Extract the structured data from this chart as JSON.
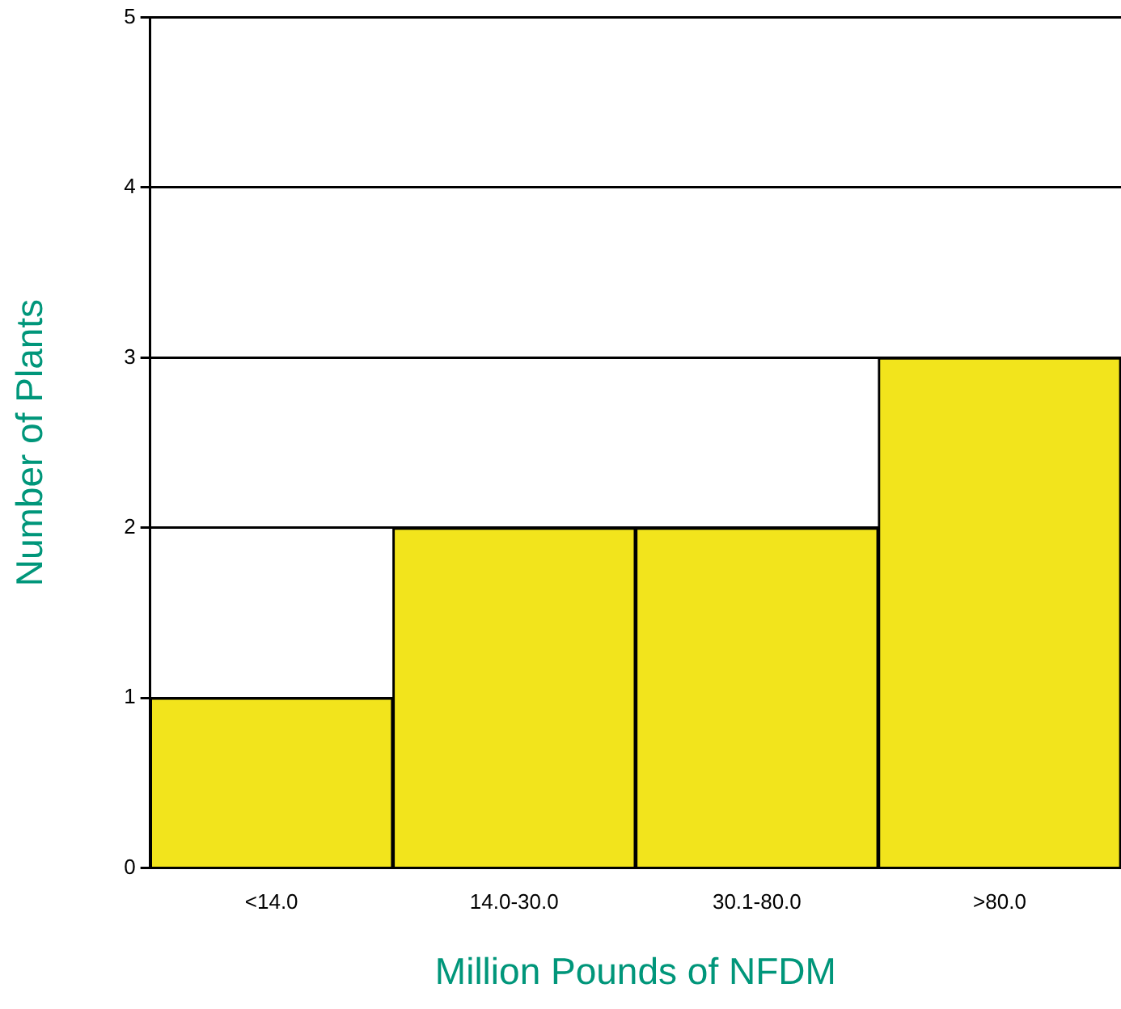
{
  "chart_data": {
    "type": "bar",
    "xlabel": "Million Pounds of NFDM",
    "ylabel": "Number of Plants",
    "categories": [
      "<14.0",
      "14.0-30.0",
      "30.1-80.0",
      ">80.0"
    ],
    "values": [
      1,
      2,
      2,
      3
    ],
    "color": "#f2e41c",
    "ylim": [
      0,
      5
    ],
    "yticks": [
      0,
      1,
      2,
      3,
      4,
      5
    ],
    "grid": "y",
    "legend": false
  }
}
